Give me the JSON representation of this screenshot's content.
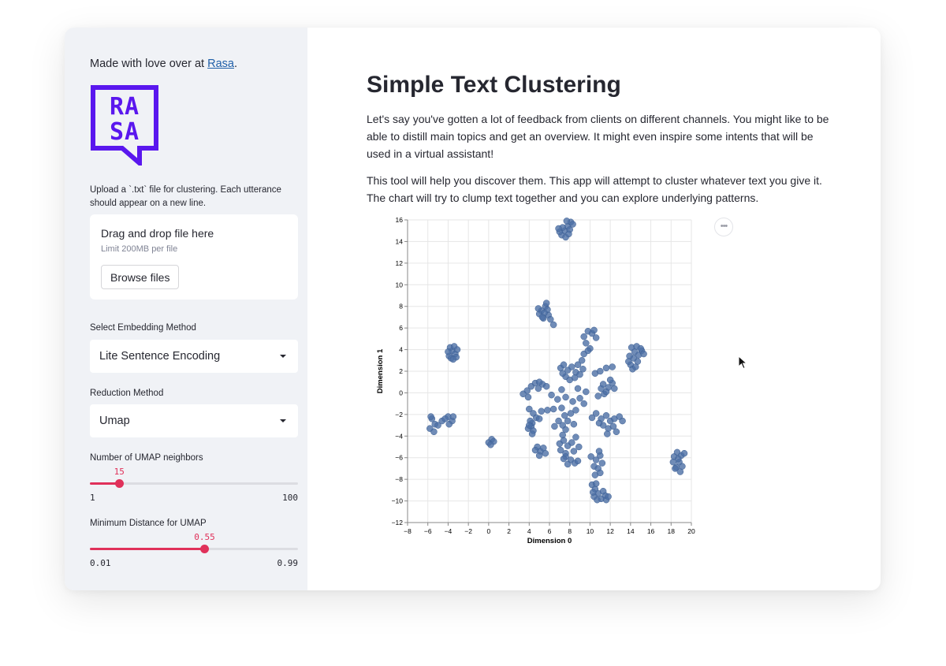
{
  "sidebar": {
    "credit_text": "Made with love over at ",
    "credit_link": "Rasa",
    "credit_suffix": ".",
    "logo_text": "RASA",
    "upload": {
      "label": "Upload a `.txt` file for clustering. Each utterance should appear on a new line.",
      "drop_text": "Drag and drop file here",
      "limit_text": "Limit 200MB per file",
      "browse_label": "Browse files"
    },
    "embedding": {
      "label": "Select Embedding Method",
      "value": "Lite Sentence Encoding"
    },
    "reduction": {
      "label": "Reduction Method",
      "value": "Umap"
    },
    "neighbors": {
      "label": "Number of UMAP neighbors",
      "value": "15",
      "min": "1",
      "max": "100",
      "fraction": 0.141
    },
    "min_dist": {
      "label": "Minimum Distance for UMAP",
      "value": "0.55",
      "min": "0.01",
      "max": "0.99",
      "fraction": 0.551
    }
  },
  "main": {
    "title": "Simple Text Clustering",
    "para1": "Let's say you've gotten a lot of feedback from clients on different channels. You might like to be able to distill main topics and get an overview. It might even inspire some intents that will be used in a virtual assistant!",
    "para2": "This tool will help you discover them. This app will attempt to cluster whatever text you give it. The chart will try to clump text together and you can explore underlying patterns.",
    "menu_icon": "ellipsis-icon"
  },
  "colors": {
    "accent": "#e0315a",
    "point": "#4c6fa5",
    "logo": "#5a17ee",
    "link": "#1f5fa8"
  },
  "chart_data": {
    "type": "scatter",
    "xlabel": "Dimension 0",
    "ylabel": "Dimension 1",
    "xlim": [
      -8,
      20
    ],
    "ylim": [
      -12,
      16
    ],
    "x_ticks": [
      -8,
      -6,
      -4,
      -2,
      0,
      2,
      4,
      6,
      8,
      10,
      12,
      14,
      16,
      18,
      20
    ],
    "y_ticks": [
      -12,
      -10,
      -8,
      -6,
      -4,
      -2,
      0,
      2,
      4,
      6,
      8,
      10,
      12,
      14,
      16
    ],
    "grid": true,
    "points": [
      [
        7.2,
        14.6
      ],
      [
        7.5,
        15.0
      ],
      [
        7.8,
        15.4
      ],
      [
        8.1,
        15.8
      ],
      [
        7.0,
        14.9
      ],
      [
        7.6,
        14.4
      ],
      [
        8.0,
        15.1
      ],
      [
        7.3,
        15.3
      ],
      [
        7.9,
        14.7
      ],
      [
        8.3,
        15.6
      ],
      [
        6.9,
        15.2
      ],
      [
        7.7,
        15.9
      ],
      [
        5.2,
        7.6
      ],
      [
        5.6,
        8.0
      ],
      [
        5.9,
        7.2
      ],
      [
        5.4,
        6.9
      ],
      [
        5.0,
        7.3
      ],
      [
        5.8,
        7.7
      ],
      [
        5.5,
        7.4
      ],
      [
        6.1,
        6.8
      ],
      [
        5.3,
        7.0
      ],
      [
        6.4,
        6.3
      ],
      [
        5.7,
        8.3
      ],
      [
        4.9,
        7.8
      ],
      [
        -3.9,
        3.4
      ],
      [
        -3.6,
        3.9
      ],
      [
        -3.3,
        3.6
      ],
      [
        -3.8,
        4.2
      ],
      [
        -3.4,
        4.3
      ],
      [
        -3.1,
        4.0
      ],
      [
        -3.7,
        3.2
      ],
      [
        -3.2,
        3.3
      ],
      [
        -4.0,
        3.8
      ],
      [
        -3.5,
        3.1
      ],
      [
        -5.6,
        -2.4
      ],
      [
        -5.3,
        -2.9
      ],
      [
        -5.8,
        -3.3
      ],
      [
        -5.0,
        -3.0
      ],
      [
        -4.6,
        -2.6
      ],
      [
        -4.0,
        -2.2
      ],
      [
        -3.6,
        -2.6
      ],
      [
        -3.9,
        -2.9
      ],
      [
        -5.4,
        -3.6
      ],
      [
        -4.3,
        -2.4
      ],
      [
        -5.7,
        -2.2
      ],
      [
        -3.5,
        -2.2
      ],
      [
        0.0,
        -4.6
      ],
      [
        0.3,
        -4.3
      ],
      [
        0.5,
        -4.5
      ],
      [
        0.2,
        -4.8
      ],
      [
        14.1,
        4.2
      ],
      [
        14.4,
        3.8
      ],
      [
        14.8,
        3.5
      ],
      [
        15.1,
        3.9
      ],
      [
        14.3,
        3.2
      ],
      [
        14.0,
        2.6
      ],
      [
        14.6,
        4.3
      ],
      [
        15.3,
        3.6
      ],
      [
        14.2,
        2.2
      ],
      [
        13.9,
        3.4
      ],
      [
        14.7,
        2.9
      ],
      [
        15.0,
        4.1
      ],
      [
        14.5,
        2.4
      ],
      [
        13.8,
        2.9
      ],
      [
        18.3,
        -5.9
      ],
      [
        18.6,
        -5.5
      ],
      [
        19.0,
        -5.8
      ],
      [
        19.3,
        -5.6
      ],
      [
        18.8,
        -6.4
      ],
      [
        18.5,
        -6.9
      ],
      [
        18.9,
        -7.3
      ],
      [
        18.4,
        -7.0
      ],
      [
        19.1,
        -6.8
      ],
      [
        18.7,
        -6.1
      ],
      [
        18.2,
        -6.4
      ],
      [
        9.4,
        5.2
      ],
      [
        9.8,
        5.7
      ],
      [
        10.2,
        5.5
      ],
      [
        10.6,
        5.1
      ],
      [
        9.6,
        4.6
      ],
      [
        10.0,
        4.1
      ],
      [
        9.4,
        3.6
      ],
      [
        9.2,
        3.0
      ],
      [
        9.8,
        3.9
      ],
      [
        10.4,
        5.8
      ],
      [
        7.1,
        2.3
      ],
      [
        7.4,
        2.6
      ],
      [
        7.8,
        2.1
      ],
      [
        8.2,
        2.4
      ],
      [
        8.6,
        1.9
      ],
      [
        7.6,
        1.5
      ],
      [
        8.0,
        1.2
      ],
      [
        8.5,
        1.4
      ],
      [
        9.0,
        1.7
      ],
      [
        9.3,
        2.2
      ],
      [
        8.8,
        2.6
      ],
      [
        7.3,
        1.8
      ],
      [
        10.5,
        1.8
      ],
      [
        11.0,
        2.0
      ],
      [
        11.6,
        2.3
      ],
      [
        12.2,
        2.4
      ],
      [
        11.1,
        0.4
      ],
      [
        11.4,
        -0.1
      ],
      [
        11.8,
        0.5
      ],
      [
        12.2,
        0.9
      ],
      [
        11.6,
        0.1
      ],
      [
        12.4,
        0.4
      ],
      [
        10.8,
        -0.3
      ],
      [
        12.0,
        1.2
      ],
      [
        11.3,
        0.8
      ],
      [
        3.8,
        0.2
      ],
      [
        4.2,
        0.6
      ],
      [
        4.6,
        0.9
      ],
      [
        3.4,
        -0.1
      ],
      [
        4.9,
        0.4
      ],
      [
        5.3,
        0.8
      ],
      [
        5.7,
        0.6
      ],
      [
        3.9,
        -0.4
      ],
      [
        5.0,
        1.0
      ],
      [
        6.2,
        -0.2
      ],
      [
        6.8,
        -0.6
      ],
      [
        7.6,
        -0.4
      ],
      [
        8.3,
        -0.8
      ],
      [
        9.0,
        -0.5
      ],
      [
        9.6,
        0.1
      ],
      [
        7.2,
        0.3
      ],
      [
        8.8,
        0.4
      ],
      [
        9.4,
        -1.0
      ],
      [
        4.0,
        -1.5
      ],
      [
        4.4,
        -1.9
      ],
      [
        4.7,
        -2.3
      ],
      [
        5.2,
        -1.7
      ],
      [
        5.8,
        -1.6
      ],
      [
        6.4,
        -1.5
      ],
      [
        5.0,
        -2.4
      ],
      [
        4.3,
        -2.8
      ],
      [
        4.1,
        -2.6
      ],
      [
        4.2,
        -3.1
      ],
      [
        4.4,
        -3.5
      ],
      [
        3.9,
        -3.3
      ],
      [
        4.3,
        -3.8
      ],
      [
        4.0,
        -3.0
      ],
      [
        7.2,
        -1.4
      ],
      [
        7.5,
        -2.1
      ],
      [
        7.8,
        -2.6
      ],
      [
        7.3,
        -3.0
      ],
      [
        6.9,
        -2.6
      ],
      [
        8.1,
        -1.9
      ],
      [
        8.6,
        -1.6
      ],
      [
        7.6,
        -3.4
      ],
      [
        8.4,
        -2.9
      ],
      [
        6.5,
        -3.1
      ],
      [
        4.8,
        -5.0
      ],
      [
        5.1,
        -5.4
      ],
      [
        5.4,
        -5.1
      ],
      [
        5.0,
        -5.8
      ],
      [
        5.6,
        -5.6
      ],
      [
        4.6,
        -5.3
      ],
      [
        7.0,
        -4.7
      ],
      [
        7.4,
        -4.4
      ],
      [
        7.8,
        -4.9
      ],
      [
        8.2,
        -4.6
      ],
      [
        8.6,
        -4.1
      ],
      [
        7.1,
        -5.3
      ],
      [
        7.6,
        -5.6
      ],
      [
        8.4,
        -5.4
      ],
      [
        8.9,
        -5.0
      ],
      [
        7.3,
        -3.9
      ],
      [
        7.6,
        -5.9
      ],
      [
        8.1,
        -6.2
      ],
      [
        8.5,
        -6.5
      ],
      [
        7.8,
        -6.6
      ],
      [
        8.8,
        -6.3
      ],
      [
        7.4,
        -6.1
      ],
      [
        10.2,
        -2.3
      ],
      [
        10.6,
        -1.9
      ],
      [
        11.1,
        -2.4
      ],
      [
        11.6,
        -2.1
      ],
      [
        12.0,
        -2.6
      ],
      [
        12.4,
        -2.4
      ],
      [
        12.9,
        -2.2
      ],
      [
        11.3,
        -3.0
      ],
      [
        11.8,
        -3.3
      ],
      [
        12.3,
        -3.1
      ],
      [
        12.6,
        -3.6
      ],
      [
        11.7,
        -3.8
      ],
      [
        10.9,
        -2.8
      ],
      [
        13.2,
        -2.6
      ],
      [
        10.1,
        -5.9
      ],
      [
        10.6,
        -6.2
      ],
      [
        11.0,
        -5.8
      ],
      [
        11.2,
        -6.5
      ],
      [
        10.4,
        -6.8
      ],
      [
        10.8,
        -7.0
      ],
      [
        11.0,
        -7.4
      ],
      [
        10.5,
        -7.6
      ],
      [
        10.9,
        -5.4
      ],
      [
        10.2,
        -8.5
      ],
      [
        10.5,
        -8.9
      ],
      [
        10.8,
        -9.3
      ],
      [
        10.4,
        -9.6
      ],
      [
        11.1,
        -9.8
      ],
      [
        11.5,
        -9.5
      ],
      [
        11.3,
        -9.1
      ],
      [
        10.7,
        -9.9
      ],
      [
        11.6,
        -9.9
      ],
      [
        10.3,
        -9.2
      ],
      [
        11.8,
        -9.6
      ],
      [
        10.6,
        -8.4
      ]
    ]
  }
}
